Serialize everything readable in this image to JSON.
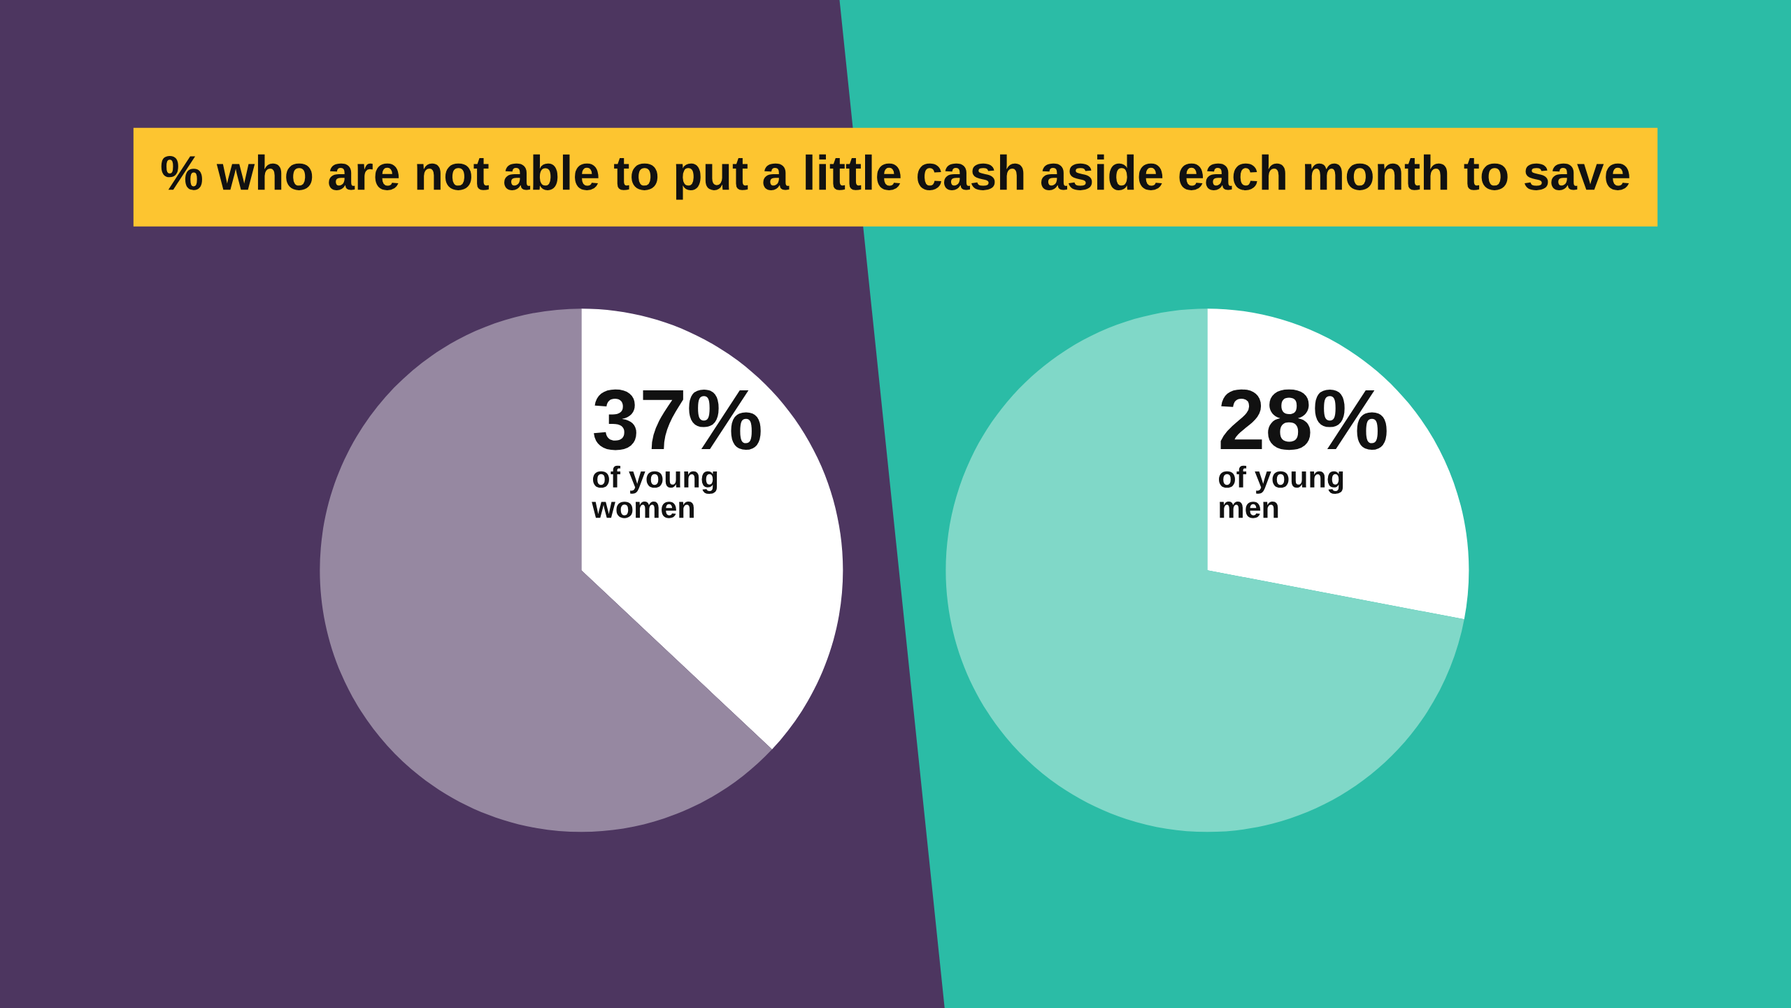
{
  "chart_data": [
    {
      "type": "pie",
      "title": "% who are not able to put a little cash aside each month to save",
      "categories": [
        "of young women",
        null
      ],
      "values": [
        37,
        63
      ],
      "colors": [
        "#ffffff",
        "#9688a1"
      ],
      "value_labels": [
        "37%",
        null
      ]
    },
    {
      "type": "pie",
      "categories": [
        "of young men",
        null
      ],
      "values": [
        28,
        72
      ],
      "colors": [
        "#ffffff",
        "#80d8c8"
      ],
      "value_labels": [
        "28%",
        null
      ]
    }
  ]
}
